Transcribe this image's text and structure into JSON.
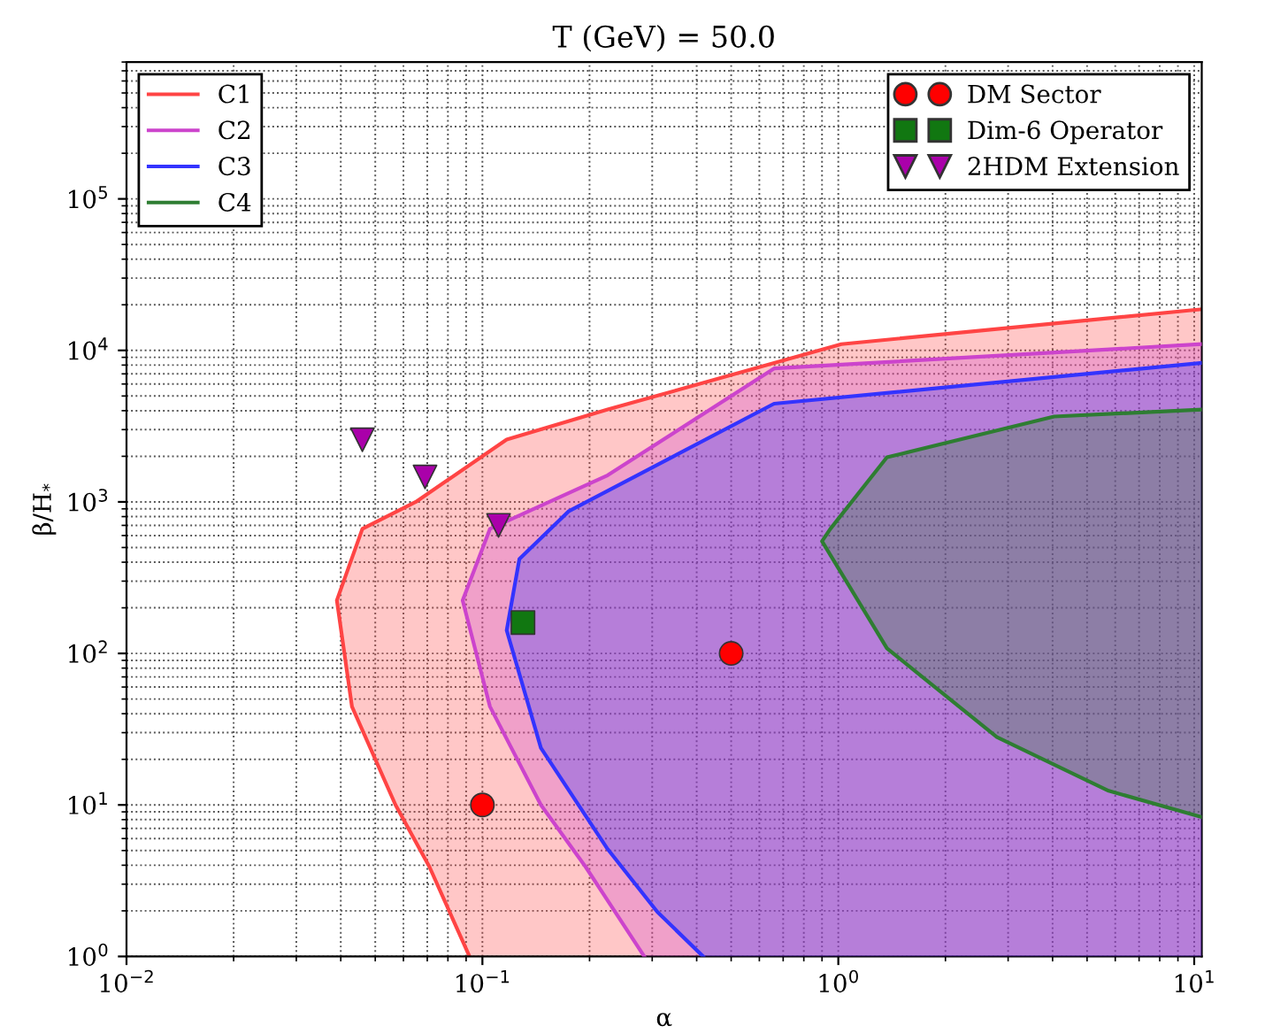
{
  "chart_data": {
    "type": "area",
    "title": "T (GeV) = 50.0",
    "xlabel": "α",
    "ylabel": "β/H$_{*}$",
    "log": "xy",
    "grid": true,
    "legend": "top left",
    "xlim": [
      0.01,
      10.5
    ],
    "ylim": [
      1,
      800000
    ],
    "xticks": [
      {
        "value": 0.01,
        "label": "10$^{−2}$"
      },
      {
        "value": 0.1,
        "label": "10$^{−1}$"
      },
      {
        "value": 1,
        "label": "10$^{0}$"
      },
      {
        "value": 10,
        "label": "10$^{1}$"
      }
    ],
    "yticks": [
      {
        "value": 1,
        "label": "10$^{0}$"
      },
      {
        "value": 10,
        "label": "10$^{1}$"
      },
      {
        "value": 100,
        "label": "10$^{2}$"
      },
      {
        "value": 1000,
        "label": "10$^{3}$"
      },
      {
        "value": 10000,
        "label": "10$^{4}$"
      },
      {
        "value": 100000,
        "label": "10$^{5}$"
      }
    ],
    "series": [
      {
        "name": "C1",
        "color": "#ff4444",
        "x": [
          0.092,
          0.071,
          0.057,
          0.043,
          0.039,
          0.046,
          0.065,
          0.117,
          0.225,
          1.02,
          10.5
        ],
        "values": [
          1,
          3.9,
          10,
          44.6,
          224,
          664,
          1000,
          2580,
          4070,
          11000,
          18700
        ]
      },
      {
        "name": "C2",
        "color": "#cc44cc",
        "x": [
          0.285,
          0.195,
          0.146,
          0.105,
          0.088,
          0.105,
          0.225,
          0.66,
          10.5
        ],
        "values": [
          1,
          3.9,
          10,
          44.6,
          224,
          664,
          1500,
          7600,
          11000
        ]
      },
      {
        "name": "C3",
        "color": "#3333ff",
        "x": [
          0.417,
          0.31,
          0.225,
          0.146,
          0.117,
          0.127,
          0.175,
          0.66,
          10.5
        ],
        "values": [
          1,
          1.97,
          5.1,
          23.8,
          142,
          419,
          870,
          4450,
          8270
        ]
      },
      {
        "name": "C4",
        "color": "#2e7d32",
        "x": [
          10.5,
          5.75,
          2.79,
          1.37,
          0.9,
          0.95,
          1.37,
          4.04,
          10.5
        ],
        "values": [
          8.3,
          12.4,
          28,
          108,
          550,
          664,
          1970,
          3660,
          4070
        ]
      },
      {
        "name": "DM Sector",
        "type": "scatter",
        "marker": "circle",
        "color": "#ff0000",
        "x": [
          0.1,
          0.5
        ],
        "values": [
          10,
          100
        ]
      },
      {
        "name": "Dim-6 Operator",
        "type": "scatter",
        "marker": "square",
        "color": "#117711",
        "x": [
          0.13
        ],
        "values": [
          160
        ]
      },
      {
        "name": "2HDM Extension",
        "type": "scatter",
        "marker": "triangle",
        "color": "#aa00aa",
        "x": [
          0.046,
          0.069,
          0.111
        ],
        "values": [
          2570,
          1460,
          700
        ]
      }
    ]
  }
}
